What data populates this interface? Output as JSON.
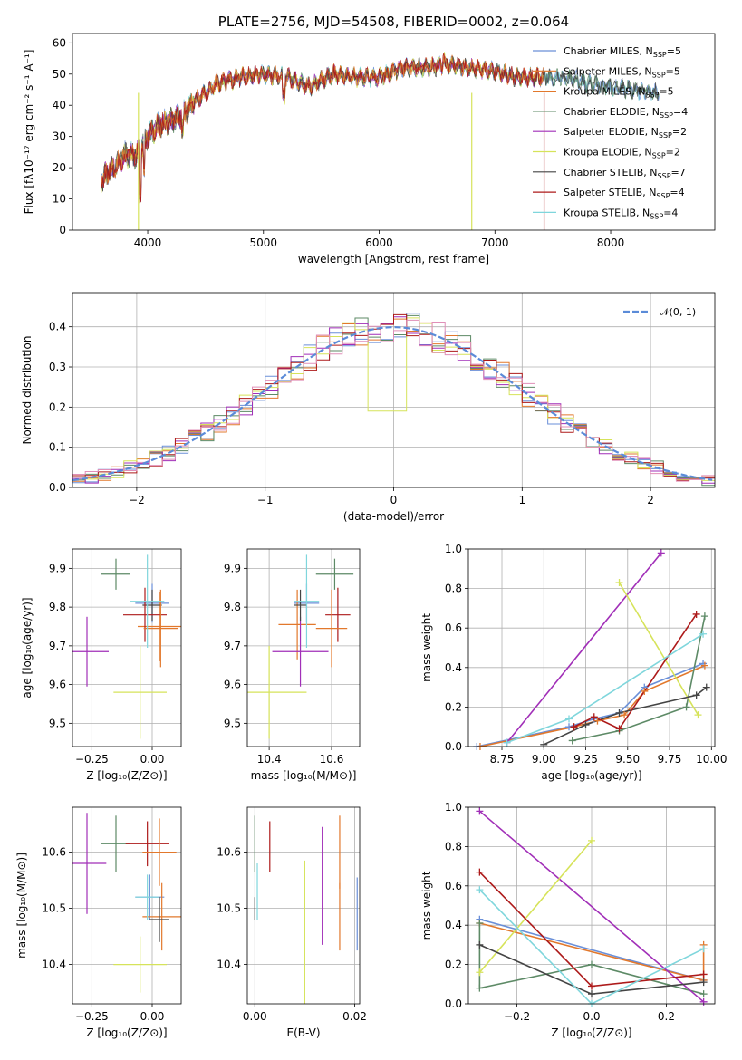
{
  "colors": [
    "#6a8fd8",
    "#e2782c",
    "#5d8a66",
    "#a12fb8",
    "#d6e35a",
    "#444444",
    "#ad1a1a",
    "#7fd6dc"
  ],
  "chart_data": [
    {
      "type": "line",
      "title": "PLATE=2756, MJD=54508, FIBERID=0002, z=0.064",
      "xlabel": "wavelength [Angstrom, rest frame]",
      "ylabel": "Flux [fλ10⁻¹⁷ erg cm⁻² s⁻¹ A⁻¹]",
      "xlim": [
        3350,
        8900
      ],
      "ylim": [
        0,
        63
      ],
      "xticks": [
        "4000",
        "5000",
        "6000",
        "7000",
        "8000"
      ],
      "yticks": [
        "0",
        "10",
        "20",
        "30",
        "40",
        "50",
        "60"
      ],
      "legend": "upper right",
      "series": [
        {
          "name": "Chabrier MILES, N",
          "nssp": "5"
        },
        {
          "name": "Salpeter MILES, N",
          "nssp": "5"
        },
        {
          "name": "Kroupa MILES, N",
          "nssp": "5"
        },
        {
          "name": "Chabrier ELODIE, N",
          "nssp": "4"
        },
        {
          "name": "Salpeter ELODIE, N",
          "nssp": "2"
        },
        {
          "name": "Kroupa ELODIE, N",
          "nssp": "2"
        },
        {
          "name": "Chabrier STELIB, N",
          "nssp": "7"
        },
        {
          "name": "Salpeter STELIB, N",
          "nssp": "4"
        },
        {
          "name": "Kroupa STELIB, N",
          "nssp": "4"
        }
      ],
      "nssp_sub": "SSP",
      "continuum": {
        "x": [
          3600,
          3700,
          3800,
          3900,
          4000,
          4100,
          4200,
          4300,
          4400,
          4500,
          4600,
          4800,
          5000,
          5200,
          5400,
          5600,
          5800,
          6000,
          6200,
          6400,
          6600,
          6800,
          7000,
          7200,
          7400,
          7600,
          7800,
          8000,
          8200,
          8400
        ],
        "y": [
          16,
          20,
          24,
          24,
          30,
          34,
          35,
          37,
          41,
          44,
          47,
          49,
          50,
          49,
          46,
          50,
          49,
          49,
          52,
          52,
          53,
          52,
          51,
          49,
          49,
          49,
          47,
          46,
          45,
          44
        ]
      }
    },
    {
      "type": "bar",
      "xlabel": "(data-model)/error",
      "ylabel": "Normed distribution",
      "xlim": [
        -2.5,
        2.5
      ],
      "ylim": [
        0,
        0.485
      ],
      "xticks": [
        "−2",
        "−1",
        "0",
        "1",
        "2"
      ],
      "yticks": [
        "0.0",
        "0.1",
        "0.2",
        "0.3",
        "0.4"
      ],
      "legend": "upper right",
      "legend_label": "𝒩(0, 1)",
      "bin_width": 0.1
    },
    {
      "type": "scatter",
      "xlabel": "Z [log₁₀(Z/Z⊙)]",
      "ylabel": "age  [log₁₀(age/yr)]",
      "xlim": [
        -0.33,
        0.12
      ],
      "ylim": [
        9.44,
        9.95
      ],
      "xticks": [
        "−0.25",
        "0.00"
      ],
      "yticks": [
        "9.5",
        "9.6",
        "9.7",
        "9.8",
        "9.9"
      ],
      "points": [
        {
          "x": 0.0,
          "y": 9.81,
          "xerr": 0.07,
          "yerr": 0.05
        },
        {
          "x": 0.03,
          "y": 9.75,
          "xerr": 0.09,
          "yerr": 0.09
        },
        {
          "x": -0.15,
          "y": 9.885,
          "xerr": 0.06,
          "yerr": 0.04
        },
        {
          "x": -0.27,
          "y": 9.685,
          "xerr": 0.09,
          "yerr": 0.09
        },
        {
          "x": -0.05,
          "y": 9.58,
          "xerr": 0.11,
          "yerr": 0.12
        },
        {
          "x": 0.0,
          "y": 9.805,
          "xerr": 0.04,
          "yerr": 0.04
        },
        {
          "x": -0.03,
          "y": 9.78,
          "xerr": 0.09,
          "yerr": 0.07
        },
        {
          "x": 0.035,
          "y": 9.745,
          "xerr": 0.07,
          "yerr": 0.1
        },
        {
          "x": -0.02,
          "y": 9.815,
          "xerr": 0.07,
          "yerr": 0.12
        }
      ]
    },
    {
      "type": "scatter",
      "xlabel": "mass [log₁₀(M/M⊙)]",
      "ylabel": "",
      "xlim": [
        10.33,
        10.69
      ],
      "ylim": [
        9.44,
        9.95
      ],
      "xticks": [
        "10.4",
        "10.6"
      ],
      "yticks": [
        "9.5",
        "9.6",
        "9.7",
        "9.8",
        "9.9"
      ],
      "points": [
        {
          "x": 10.52,
          "y": 9.81,
          "xerr": 0.04,
          "yerr": 0.05
        },
        {
          "x": 10.49,
          "y": 9.755,
          "xerr": 0.06,
          "yerr": 0.09
        },
        {
          "x": 10.61,
          "y": 9.885,
          "xerr": 0.06,
          "yerr": 0.04
        },
        {
          "x": 10.5,
          "y": 9.685,
          "xerr": 0.09,
          "yerr": 0.09
        },
        {
          "x": 10.4,
          "y": 9.58,
          "xerr": 0.12,
          "yerr": 0.12
        },
        {
          "x": 10.5,
          "y": 9.805,
          "xerr": 0.02,
          "yerr": 0.04
        },
        {
          "x": 10.62,
          "y": 9.78,
          "xerr": 0.04,
          "yerr": 0.07
        },
        {
          "x": 10.6,
          "y": 9.745,
          "xerr": 0.05,
          "yerr": 0.1
        },
        {
          "x": 10.52,
          "y": 9.815,
          "xerr": 0.04,
          "yerr": 0.12
        }
      ]
    },
    {
      "type": "line",
      "xlabel": "age  [log₁₀(age/yr)]",
      "ylabel": "mass weight",
      "xlim": [
        8.55,
        10.02
      ],
      "ylim": [
        0,
        1
      ],
      "xticks": [
        "8.75",
        "9.00",
        "9.25",
        "9.50",
        "9.75",
        "10.00"
      ],
      "yticks": [
        "0.0",
        "0.2",
        "0.4",
        "0.6",
        "0.8",
        "1.0"
      ],
      "series": [
        {
          "x": [
            8.6,
            9.15,
            9.3,
            9.45,
            9.6,
            9.95
          ],
          "y": [
            0.0,
            0.1,
            0.14,
            0.17,
            0.3,
            0.42
          ]
        },
        {
          "x": [
            8.62,
            9.18,
            9.32,
            9.48,
            9.6,
            9.96
          ],
          "y": [
            0.0,
            0.1,
            0.13,
            0.16,
            0.28,
            0.41
          ]
        },
        {
          "x": [
            9.17,
            9.45,
            9.85,
            9.96
          ],
          "y": [
            0.03,
            0.08,
            0.2,
            0.66
          ]
        },
        {
          "x": [
            8.78,
            9.7
          ],
          "y": [
            0.02,
            0.98
          ]
        },
        {
          "x": [
            9.45,
            9.92
          ],
          "y": [
            0.83,
            0.16
          ]
        },
        {
          "x": [
            9.0,
            9.25,
            9.45,
            9.91,
            9.97
          ],
          "y": [
            0.01,
            0.11,
            0.17,
            0.26,
            0.3
          ]
        },
        {
          "x": [
            9.18,
            9.3,
            9.45,
            9.91
          ],
          "y": [
            0.1,
            0.15,
            0.09,
            0.67
          ]
        },
        {
          "x": [
            8.78,
            9.15,
            9.95
          ],
          "y": [
            0.02,
            0.14,
            0.57
          ]
        }
      ]
    },
    {
      "type": "scatter",
      "xlabel": "Z [log₁₀(Z/Z⊙)]",
      "ylabel": "mass [log₁₀(M/M⊙)]",
      "xlim": [
        -0.33,
        0.12
      ],
      "ylim": [
        10.33,
        10.68
      ],
      "xticks": [
        "−0.25",
        "0.00"
      ],
      "yticks": [
        "10.4",
        "10.5",
        "10.6"
      ],
      "points": [
        {
          "x": -0.01,
          "y": 10.52,
          "xerr": 0.06,
          "yerr": 0.04
        },
        {
          "x": 0.04,
          "y": 10.485,
          "xerr": 0.08,
          "yerr": 0.06
        },
        {
          "x": -0.15,
          "y": 10.615,
          "xerr": 0.06,
          "yerr": 0.05
        },
        {
          "x": -0.27,
          "y": 10.58,
          "xerr": 0.08,
          "yerr": 0.09
        },
        {
          "x": -0.05,
          "y": 10.4,
          "xerr": 0.11,
          "yerr": 0.05
        },
        {
          "x": 0.03,
          "y": 10.48,
          "xerr": 0.04,
          "yerr": 0.04
        },
        {
          "x": -0.02,
          "y": 10.615,
          "xerr": 0.09,
          "yerr": 0.04
        },
        {
          "x": 0.03,
          "y": 10.6,
          "xerr": 0.07,
          "yerr": 0.06
        },
        {
          "x": -0.02,
          "y": 10.52,
          "xerr": 0.05,
          "yerr": 0.04
        }
      ]
    },
    {
      "type": "scatter",
      "xlabel": "E(B-V)",
      "ylabel": "",
      "xlim": [
        -0.0015,
        0.021
      ],
      "ylim": [
        10.33,
        10.68
      ],
      "xticks": [
        "0.00",
        "0.02"
      ],
      "yticks": [
        "10.4",
        "10.5",
        "10.6"
      ],
      "points": [
        {
          "x": 0.0205,
          "y": 10.49,
          "yerr": 0.065
        },
        {
          "x": 0.017,
          "y": 10.485,
          "yerr": 0.06
        },
        {
          "x": 0.0,
          "y": 10.615,
          "yerr": 0.05
        },
        {
          "x": 0.0135,
          "y": 10.54,
          "yerr": 0.105
        },
        {
          "x": 0.01,
          "y": 10.45,
          "yerr": 0.135
        },
        {
          "x": 0.0,
          "y": 10.5,
          "yerr": 0.02
        },
        {
          "x": 0.003,
          "y": 10.61,
          "yerr": 0.045
        },
        {
          "x": 0.017,
          "y": 10.6,
          "yerr": 0.065
        },
        {
          "x": 0.0005,
          "y": 10.53,
          "yerr": 0.05
        }
      ]
    },
    {
      "type": "line",
      "xlabel": "Z [log₁₀(Z/Z⊙)]",
      "ylabel": "mass weight",
      "xlim": [
        -0.33,
        0.33
      ],
      "ylim": [
        0,
        1
      ],
      "xticks": [
        "−0.2",
        "0.0",
        "0.2"
      ],
      "yticks": [
        "0.0",
        "0.2",
        "0.4",
        "0.6",
        "0.8",
        "1.0"
      ],
      "series": [
        {
          "x": [
            -0.3,
            0.3
          ],
          "y": [
            0.43,
            0.12
          ]
        },
        {
          "x": [
            -0.3,
            0.3,
            0.3
          ],
          "y": [
            0.41,
            0.12,
            0.3
          ]
        },
        {
          "x": [
            -0.3,
            -0.3,
            0.0,
            0.3
          ],
          "y": [
            0.41,
            0.08,
            0.2,
            0.05
          ]
        },
        {
          "x": [
            -0.3,
            0.3
          ],
          "y": [
            0.98,
            0.01
          ]
        },
        {
          "x": [
            -0.3,
            0.0
          ],
          "y": [
            0.16,
            0.83
          ]
        },
        {
          "x": [
            -0.3,
            0.0,
            0.3
          ],
          "y": [
            0.3,
            0.05,
            0.11
          ]
        },
        {
          "x": [
            -0.3,
            0.0,
            0.3
          ],
          "y": [
            0.67,
            0.09,
            0.15
          ]
        },
        {
          "x": [
            -0.3,
            0.0,
            0.3
          ],
          "y": [
            0.58,
            0.0,
            0.28
          ]
        }
      ]
    }
  ]
}
